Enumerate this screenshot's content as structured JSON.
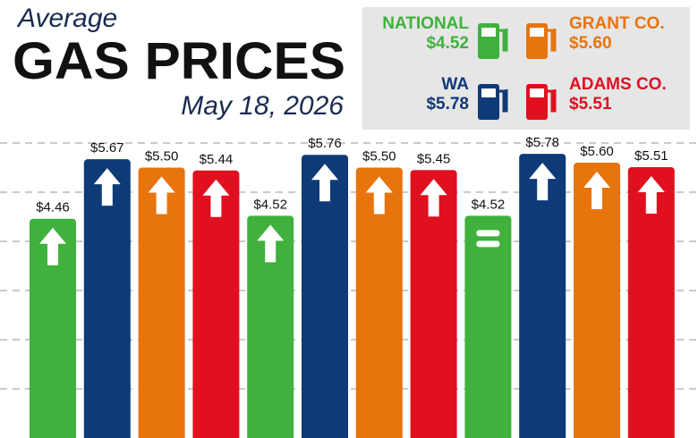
{
  "chart_data": {
    "type": "bar",
    "title_small": "Average",
    "title": "GAS PRICES",
    "subtitle": "May 18, 2026",
    "groups": 3,
    "series": [
      {
        "name": "NATIONAL",
        "legend_label": "$4.52",
        "color": "#3fb13c",
        "values": [
          4.46,
          4.52,
          4.52
        ],
        "value_labels": [
          "$4.46",
          "$4.52",
          "$4.52"
        ],
        "trends": [
          "up",
          "up",
          "equal"
        ]
      },
      {
        "name": "WA",
        "legend_label": "$5.78",
        "color": "#0e3a78",
        "values": [
          5.67,
          5.76,
          5.78
        ],
        "value_labels": [
          "$5.67",
          "$5.76",
          "$5.78"
        ],
        "trends": [
          "up",
          "up",
          "up"
        ]
      },
      {
        "name": "GRANT CO.",
        "legend_label": "$5.60",
        "color": "#e8740e",
        "values": [
          5.5,
          5.5,
          5.6
        ],
        "value_labels": [
          "$5.50",
          "$5.50",
          "$5.60"
        ],
        "trends": [
          "up",
          "up",
          "up"
        ]
      },
      {
        "name": "ADAMS CO.",
        "legend_label": "$5.51",
        "color": "#e0101f",
        "values": [
          5.44,
          5.45,
          5.51
        ],
        "value_labels": [
          "$5.44",
          "$5.45",
          "$5.51"
        ],
        "trends": [
          "up",
          "up",
          "up"
        ]
      }
    ],
    "ylim": [
      0,
      6
    ],
    "gridlines": [
      1,
      2,
      3,
      4,
      5,
      6
    ],
    "grid": true
  }
}
